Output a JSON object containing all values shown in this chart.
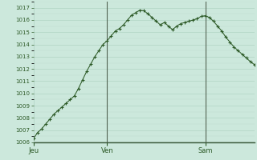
{
  "background_color": "#cce8dc",
  "plot_bg_color": "#cce8dc",
  "grid_major_color": "#b0d4c4",
  "grid_minor_color": "#c0ddd0",
  "line_color": "#2d5a27",
  "marker_color": "#2d5a27",
  "vline_color": "#556655",
  "tick_color": "#2d5a27",
  "ylim": [
    1006,
    1017.5
  ],
  "yticks": [
    1006,
    1007,
    1008,
    1009,
    1010,
    1011,
    1012,
    1013,
    1014,
    1015,
    1016,
    1017
  ],
  "day_labels": [
    "Jeu",
    "Ven",
    "Sam"
  ],
  "day_positions": [
    0,
    18,
    42
  ],
  "vline_positions": [
    18,
    42
  ],
  "y_values": [
    1006.3,
    1006.8,
    1007.1,
    1007.5,
    1007.9,
    1008.3,
    1008.6,
    1008.9,
    1009.2,
    1009.5,
    1009.8,
    1010.4,
    1011.1,
    1011.8,
    1012.4,
    1013.0,
    1013.5,
    1014.0,
    1014.3,
    1014.7,
    1015.1,
    1015.3,
    1015.6,
    1016.0,
    1016.4,
    1016.6,
    1016.8,
    1016.75,
    1016.5,
    1016.2,
    1015.9,
    1015.6,
    1015.8,
    1015.5,
    1015.2,
    1015.5,
    1015.7,
    1015.8,
    1015.9,
    1016.0,
    1016.1,
    1016.3,
    1016.35,
    1016.2,
    1015.9,
    1015.5,
    1015.1,
    1014.6,
    1014.2,
    1013.8,
    1013.5,
    1013.2,
    1012.9,
    1012.6,
    1012.35
  ]
}
